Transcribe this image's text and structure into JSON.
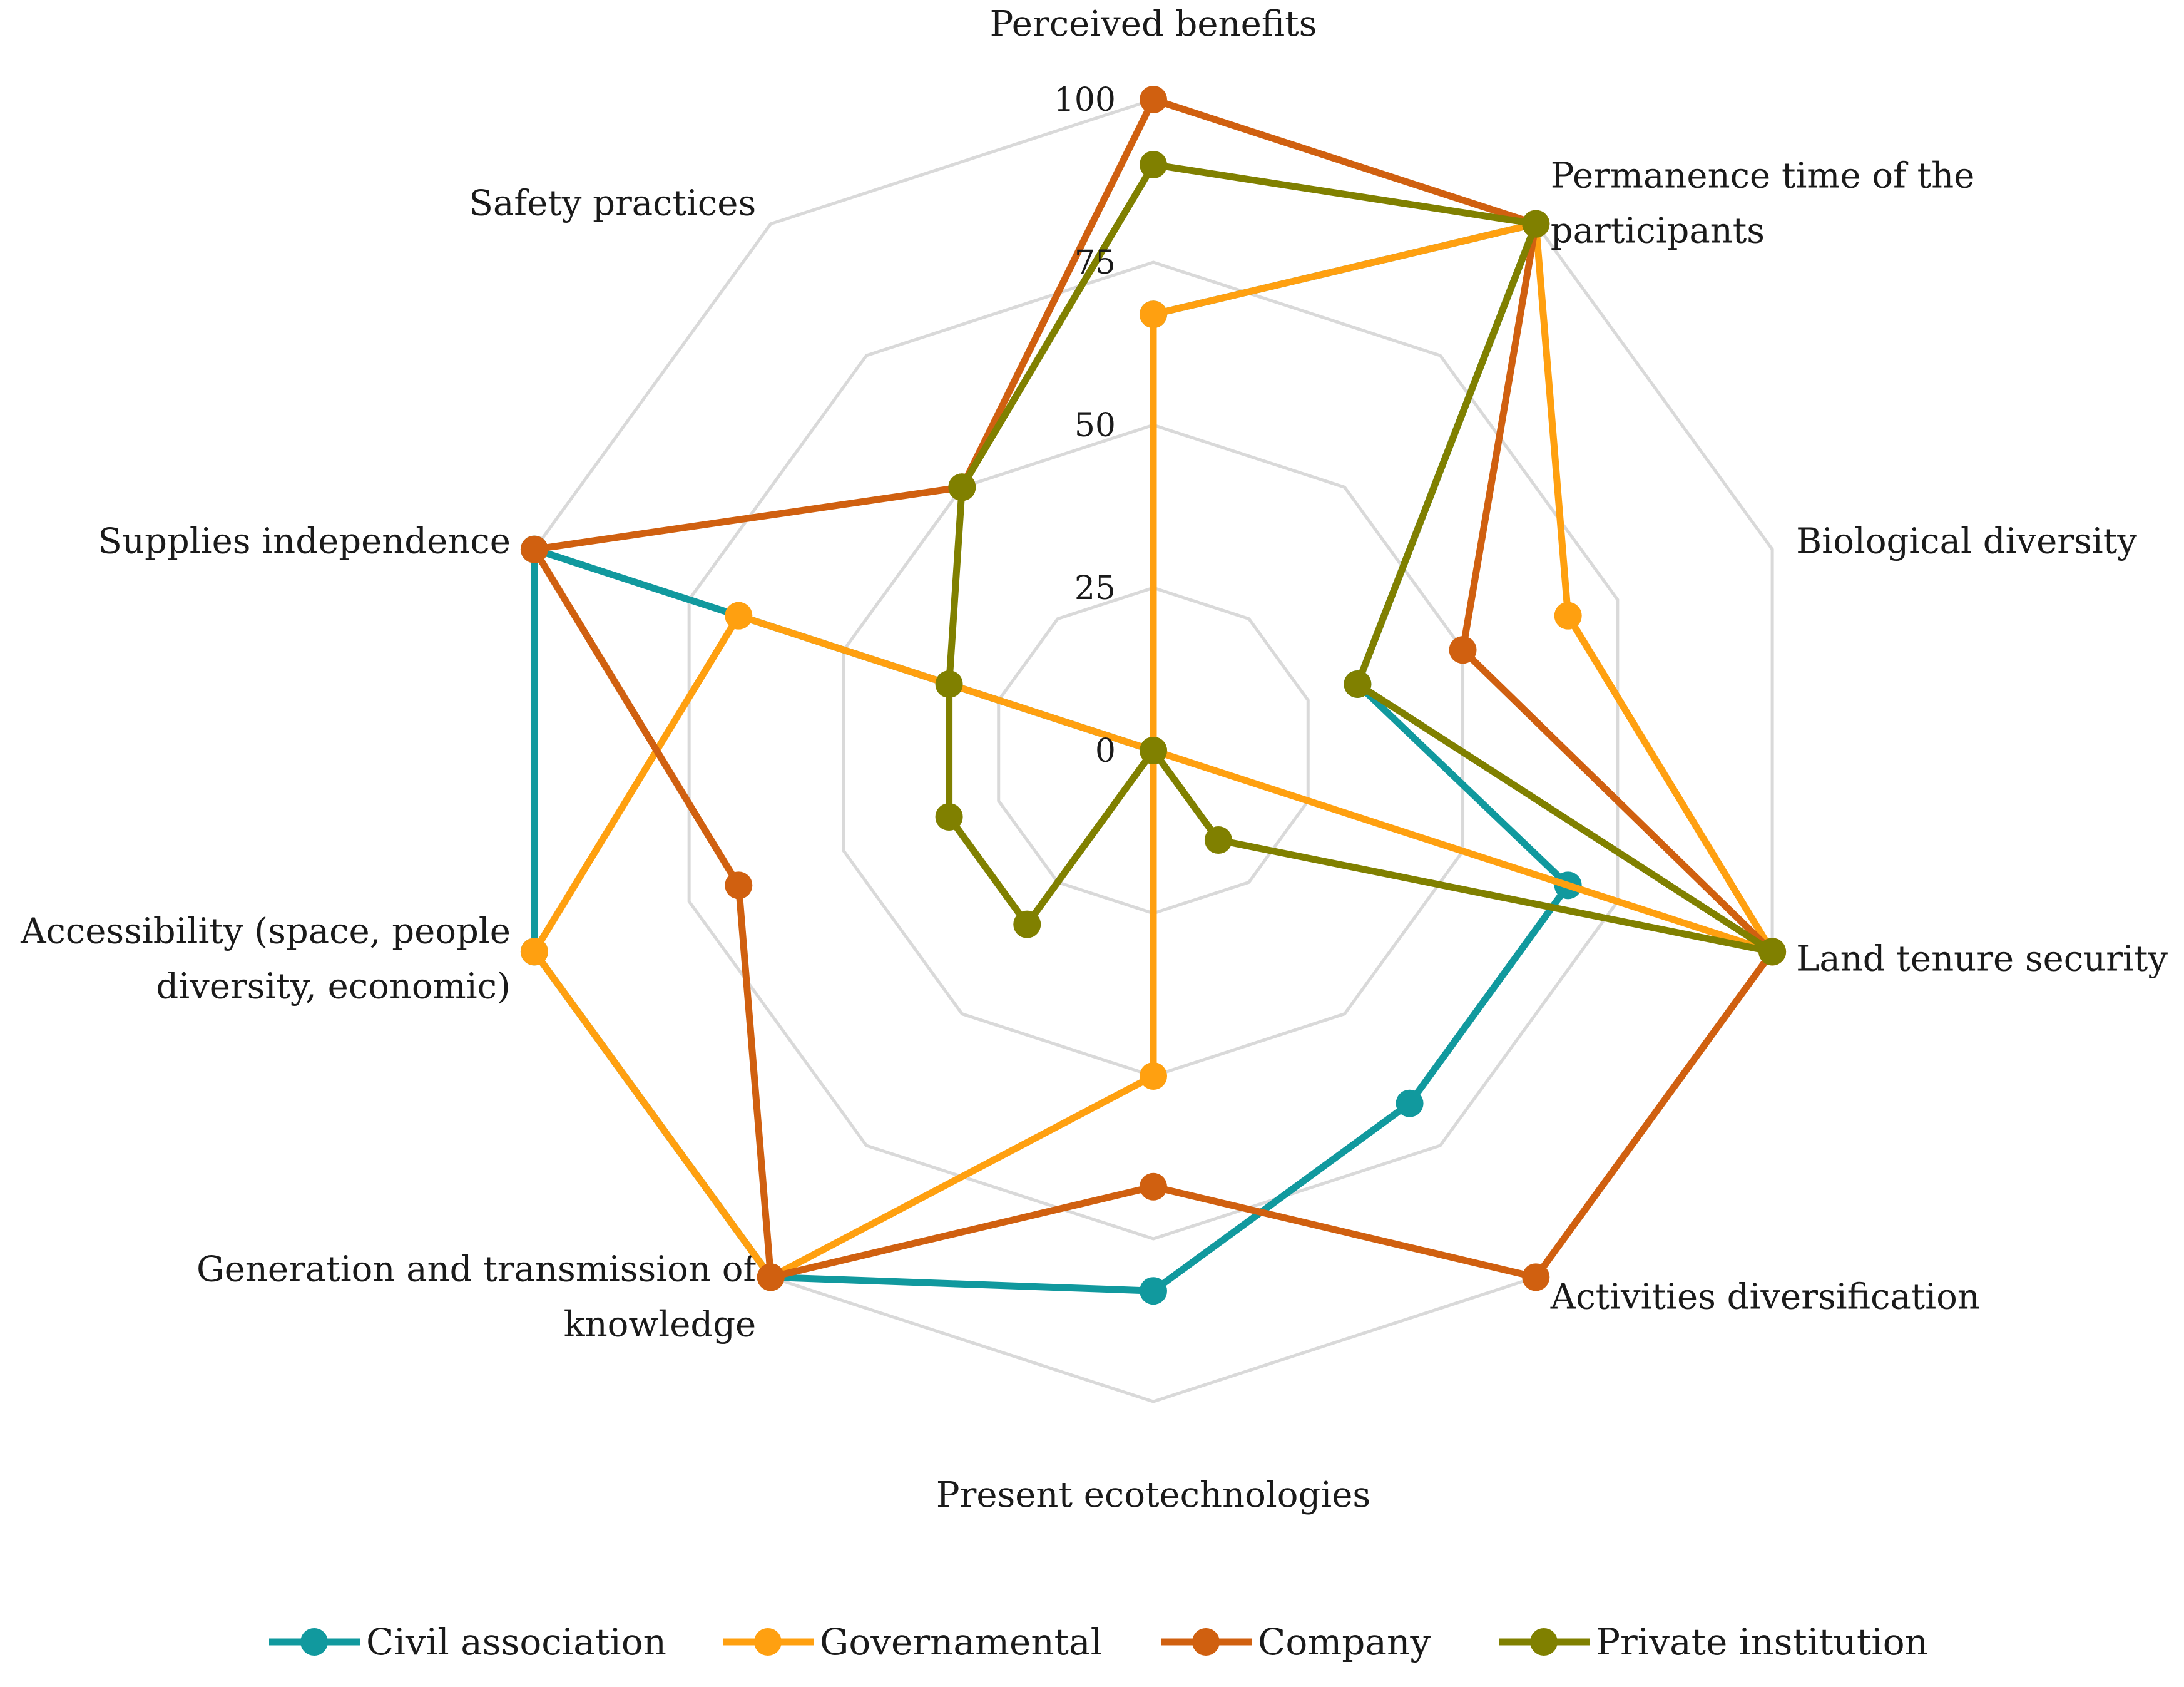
{
  "chart_data": {
    "type": "radar",
    "title": "",
    "axes": [
      [
        "Perceived benefits"
      ],
      [
        "Permanence time of the",
        "participants"
      ],
      [
        "Biological diversity"
      ],
      [
        "Land tenure security"
      ],
      [
        "Activities diversification"
      ],
      [
        "Present ecotechnologies"
      ],
      [
        "Generation and  transmission of",
        "knowledge"
      ],
      [
        "Accessibility (space, people",
        "diversity, economic)"
      ],
      [
        "Supplies independence"
      ],
      [
        "Safety practices"
      ]
    ],
    "ticks": [
      0,
      25,
      50,
      75,
      100
    ],
    "rlim": [
      0,
      100
    ],
    "grid": true,
    "legend_position": "bottom",
    "series": [
      {
        "name": "Civil association",
        "color": "#11999e",
        "values": [
          67,
          100,
          33,
          67,
          67,
          83,
          100,
          100,
          100,
          0
        ]
      },
      {
        "name": "Governamental",
        "color": "#ffa010",
        "values": [
          67,
          100,
          67,
          100,
          0,
          50,
          100,
          100,
          67,
          0
        ]
      },
      {
        "name": "Company",
        "color": "#d06010",
        "values": [
          100,
          100,
          50,
          100,
          100,
          67,
          100,
          67,
          100,
          50
        ]
      },
      {
        "name": "Private institution",
        "color": "#808000",
        "values": [
          90,
          100,
          33,
          100,
          17,
          0,
          33,
          33,
          33,
          50
        ]
      }
    ]
  }
}
